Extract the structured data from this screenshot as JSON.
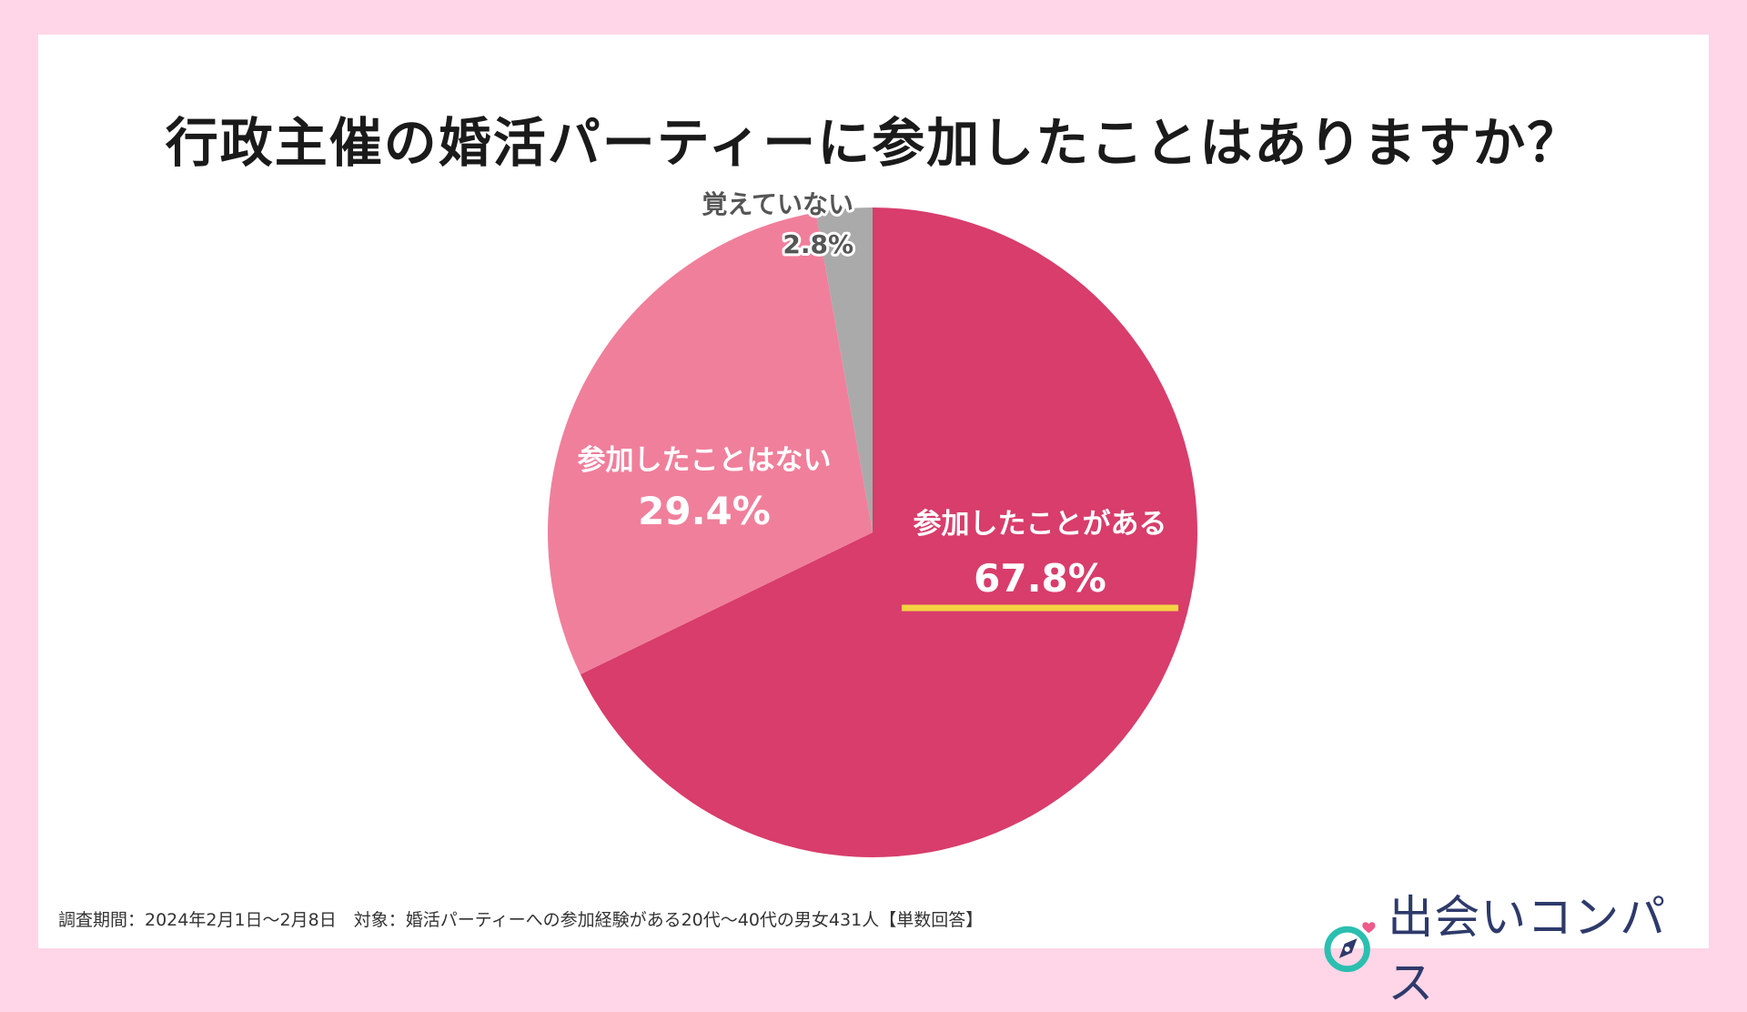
{
  "chart_data": {
    "type": "pie",
    "title": "行政主催の婚活パーティーに参加したことはありますか？",
    "start_angle": "12 o'clock",
    "direction": "clockwise",
    "slices": [
      {
        "label": "参加したことがある",
        "value": 67.8,
        "value_label": "67.8%",
        "color": "#d83d6b",
        "highlight": true
      },
      {
        "label": "参加したことはない",
        "value": 29.4,
        "value_label": "29.4%",
        "color": "#f07f9b"
      },
      {
        "label": "覚えていない",
        "value": 2.8,
        "value_label": "2.8%",
        "color": "#aaaaaa"
      }
    ]
  },
  "footnote": "調査期間：2024年2月1日〜2月8日　対象：婚活パーティーへの参加経験がある20代〜40代の男女431人【単数回答】",
  "brand": {
    "name": "出会いコンパス",
    "icon": "compass-heart-icon",
    "colors": {
      "ring": "#2bbfb0",
      "needle": "#2e3a6b",
      "heart": "#ee5a8a"
    }
  },
  "colors": {
    "background": "#ffd6e7",
    "card": "#ffffff",
    "underline": "#f5d342"
  }
}
